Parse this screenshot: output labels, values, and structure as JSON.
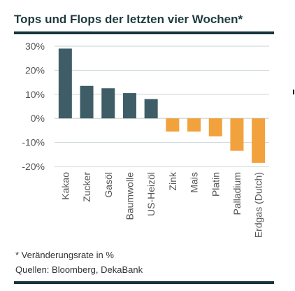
{
  "title": "Tops und Flops der letzten vier Wochen*",
  "footnote": "* Veränderungsrate in %",
  "source": "Quellen: Bloomberg, DekaBank",
  "colors": {
    "positive": "#3f5d66",
    "negative": "#f2a23c",
    "grid": "#c9d3d6",
    "axis_text": "#555555"
  },
  "chart_data": {
    "type": "bar",
    "categories": [
      "Kakao",
      "Zucker",
      "Gasöl",
      "Baumwolle",
      "US-Heizöl",
      "Zink",
      "Mais",
      "Platin",
      "Palladium",
      "Erdgas (Dutch)"
    ],
    "values": [
      29,
      13.5,
      12.5,
      10.5,
      8,
      -5.5,
      -5.5,
      -7.5,
      -13.5,
      -18.5
    ],
    "yticks": [
      "30%",
      "20%",
      "10%",
      "0%",
      "-10%",
      "-20%"
    ],
    "ylim": [
      -20,
      30
    ],
    "grid": true,
    "xlabel": "",
    "ylabel": ""
  }
}
